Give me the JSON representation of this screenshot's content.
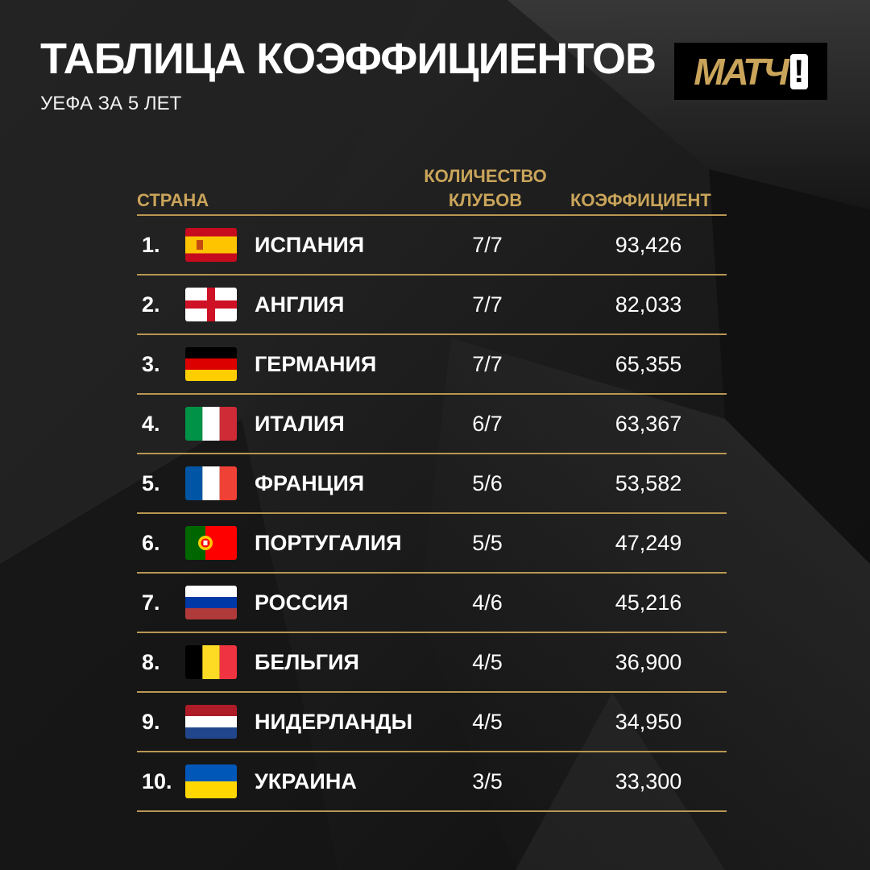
{
  "header": {
    "title": "ТАБЛИЦА КОЭФФИЦИЕНТОВ",
    "subtitle": "УЕФА ЗА 5 ЛЕТ",
    "logo_text": "МАТЧ",
    "logo_mark": "!"
  },
  "table": {
    "headers": {
      "country": "СТРАНА",
      "clubs": "КОЛИЧЕСТВО КЛУБОВ",
      "coefficient": "КОЭФФИЦИЕНТ"
    },
    "rows": [
      {
        "rank": "1.",
        "flag": "spain-flag-icon",
        "country": "ИСПАНИЯ",
        "clubs": "7/7",
        "coefficient": "93,426"
      },
      {
        "rank": "2.",
        "flag": "england-flag-icon",
        "country": "АНГЛИЯ",
        "clubs": "7/7",
        "coefficient": "82,033"
      },
      {
        "rank": "3.",
        "flag": "germany-flag-icon",
        "country": "ГЕРМАНИЯ",
        "clubs": "7/7",
        "coefficient": "65,355"
      },
      {
        "rank": "4.",
        "flag": "italy-flag-icon",
        "country": "ИТАЛИЯ",
        "clubs": "6/7",
        "coefficient": "63,367"
      },
      {
        "rank": "5.",
        "flag": "france-flag-icon",
        "country": "ФРАНЦИЯ",
        "clubs": "5/6",
        "coefficient": "53,582"
      },
      {
        "rank": "6.",
        "flag": "portugal-flag-icon",
        "country": "ПОРТУГАЛИЯ",
        "clubs": "5/5",
        "coefficient": "47,249"
      },
      {
        "rank": "7.",
        "flag": "russia-flag-icon",
        "country": "РОССИЯ",
        "clubs": "4/6",
        "coefficient": "45,216"
      },
      {
        "rank": "8.",
        "flag": "belgium-flag-icon",
        "country": "БЕЛЬГИЯ",
        "clubs": "4/5",
        "coefficient": "36,900"
      },
      {
        "rank": "9.",
        "flag": "netherlands-flag-icon",
        "country": "НИДЕРЛАНДЫ",
        "clubs": "4/5",
        "coefficient": "34,950"
      },
      {
        "rank": "10.",
        "flag": "ukraine-flag-icon",
        "country": "УКРАИНА",
        "clubs": "3/5",
        "coefficient": "33,300"
      }
    ]
  },
  "colors": {
    "background": "#1a1a1a",
    "accent_gold": "#c9a45a",
    "text": "#ffffff"
  }
}
